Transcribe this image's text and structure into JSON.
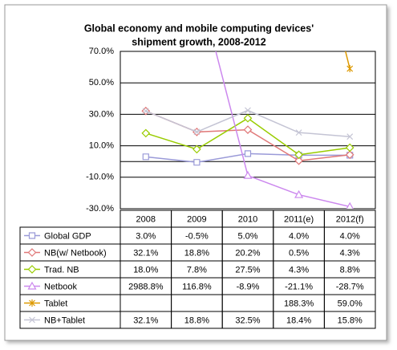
{
  "chart_data": {
    "type": "line",
    "title": [
      "Global economy and mobile computing devices'",
      "shipment growth, 2008-2012"
    ],
    "categories": [
      "2008",
      "2009",
      "2010",
      "2011(e)",
      "2012(f)"
    ],
    "ylim": [
      -30,
      70
    ],
    "yticks": [
      {
        "value": -30,
        "label": "-30.0%"
      },
      {
        "value": -10,
        "label": "-10.0%"
      },
      {
        "value": 10,
        "label": "10.0%"
      },
      {
        "value": 30,
        "label": "30.0%"
      },
      {
        "value": 50,
        "label": "50.0%"
      },
      {
        "value": 70,
        "label": "70.0%"
      }
    ],
    "grid": true,
    "series": [
      {
        "name": "Global GDP",
        "color": "#9a9ad8",
        "marker": "square",
        "values": [
          3.0,
          -0.5,
          5.0,
          4.0,
          4.0
        ],
        "value_labels": [
          "3.0%",
          "-0.5%",
          "5.0%",
          "4.0%",
          "4.0%"
        ]
      },
      {
        "name": "NB(w/ Netbook)",
        "color": "#e07878",
        "marker": "diamond",
        "values": [
          32.1,
          18.8,
          20.2,
          0.5,
          4.3
        ],
        "value_labels": [
          "32.1%",
          "18.8%",
          "20.2%",
          "0.5%",
          "4.3%"
        ]
      },
      {
        "name": "Trad. NB",
        "color": "#99cc00",
        "marker": "diamond",
        "values": [
          18.0,
          7.8,
          27.5,
          4.3,
          8.8
        ],
        "value_labels": [
          "18.0%",
          "7.8%",
          "27.5%",
          "4.3%",
          "8.8%"
        ]
      },
      {
        "name": "Netbook",
        "color": "#cc88ee",
        "marker": "triangle",
        "values": [
          2988.8,
          116.8,
          -8.9,
          -21.1,
          -28.7
        ],
        "value_labels": [
          "2988.8%",
          "116.8%",
          "-8.9%",
          "-21.1%",
          "-28.7%"
        ]
      },
      {
        "name": "Tablet",
        "color": "#dd9900",
        "marker": "star",
        "values": [
          null,
          null,
          null,
          188.3,
          59.0
        ],
        "value_labels": [
          null,
          null,
          null,
          "188.3%",
          "59.0%"
        ]
      },
      {
        "name": "NB+Tablet",
        "color": "#c4c4d4",
        "marker": "x",
        "values": [
          32.1,
          18.8,
          32.5,
          18.4,
          15.8
        ],
        "value_labels": [
          "32.1%",
          "18.8%",
          "32.5%",
          "18.4%",
          "15.8%"
        ]
      }
    ]
  }
}
